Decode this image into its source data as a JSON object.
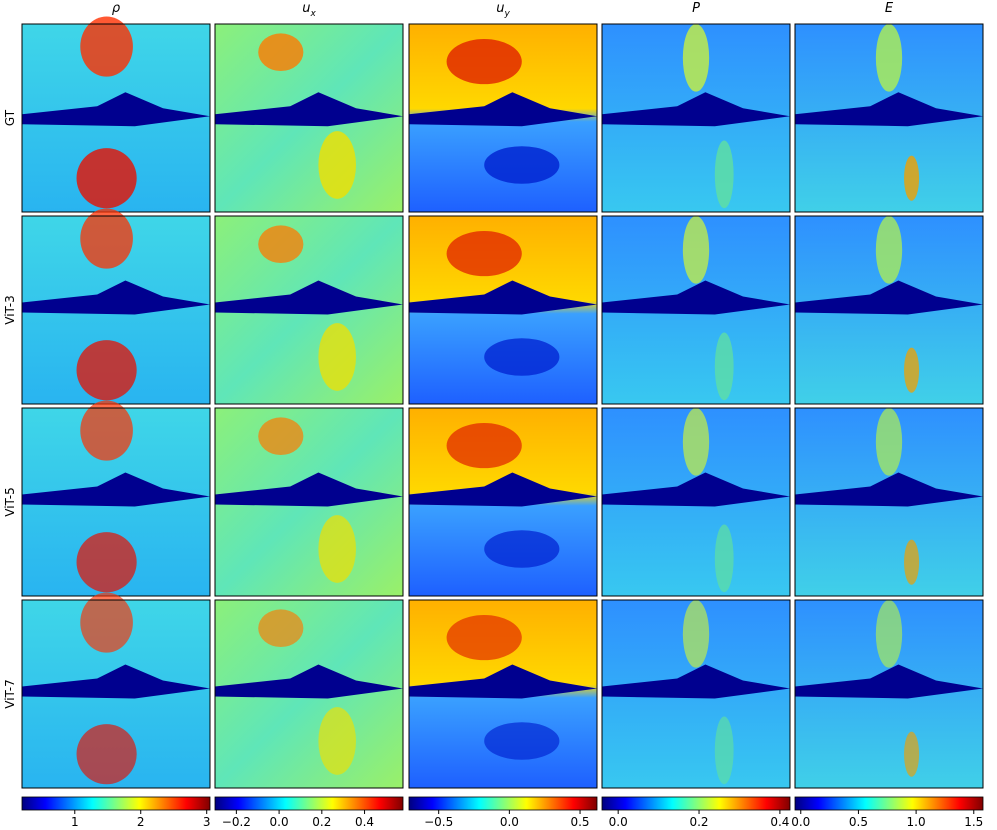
{
  "row_labels": [
    "GT",
    "ViT-3",
    "ViT-5",
    "ViT-7"
  ],
  "chart_data": [
    {
      "type": "colorbar",
      "title": "ρ",
      "xlim": [
        0.2,
        3.05
      ],
      "xticks": [
        1,
        2,
        3
      ]
    },
    {
      "type": "colorbar",
      "title": "u",
      "title_sub": "x",
      "xlim": [
        -0.3,
        0.58
      ],
      "xticks": [
        {
          "value": -0.2,
          "label": "−0.2"
        },
        {
          "value": 0,
          "label": "0.0"
        },
        {
          "value": 0.2,
          "label": "0.2"
        },
        {
          "value": 0.4,
          "label": "0.4"
        }
      ]
    },
    {
      "type": "colorbar",
      "title": "u",
      "title_sub": "y",
      "xlim": [
        -0.71,
        0.62
      ],
      "xticks": [
        {
          "value": -0.5,
          "label": "−0.5"
        },
        {
          "value": 0,
          "label": "0.0"
        },
        0.5
      ]
    },
    {
      "type": "colorbar",
      "title": "P",
      "xlim": [
        -0.04,
        0.425
      ],
      "xticks": [
        {
          "value": 0,
          "label": "0.0"
        },
        {
          "value": 0.2,
          "label": "0.2"
        },
        {
          "value": 0.4,
          "label": "0.4"
        }
      ]
    },
    {
      "type": "colorbar",
      "title": "E",
      "xlim": [
        -0.05,
        1.58
      ],
      "xticks": [
        {
          "value": 0,
          "label": "0.0"
        },
        0.5,
        {
          "value": 1,
          "label": "1.0"
        },
        1.5
      ]
    }
  ]
}
